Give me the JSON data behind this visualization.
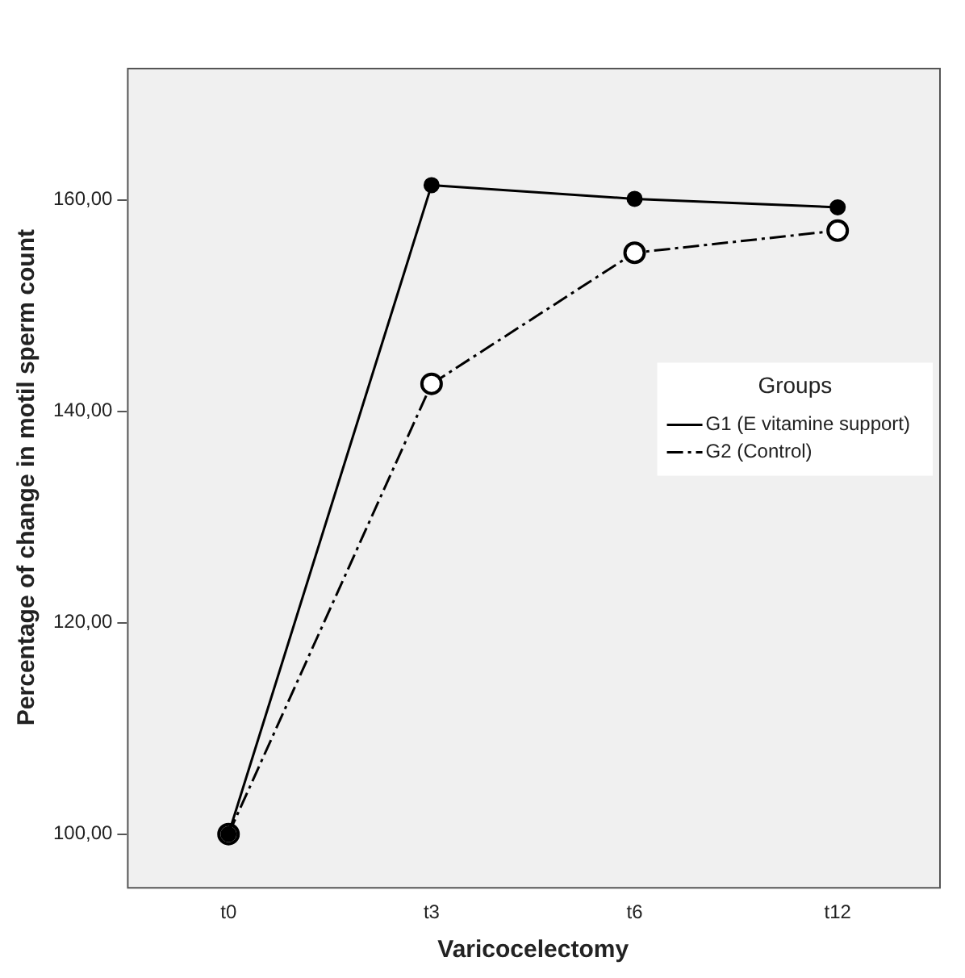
{
  "chart_data": {
    "type": "line",
    "xlabel": "Varicocelectomy",
    "ylabel": "Percentage of change in motil sperm count",
    "categories": [
      "t0",
      "t3",
      "t6",
      "t12"
    ],
    "series": [
      {
        "name": "G1 (E vitamine support)",
        "color": "#000000",
        "values": [
          100,
          161.4,
          160.1,
          159.3
        ],
        "line_style": "solid"
      },
      {
        "name": "G2 (Control)",
        "color": "#000000",
        "values": [
          100,
          142.6,
          155.0,
          157.1
        ],
        "line_style": "dashed"
      }
    ],
    "ylim": [
      95,
      172.5
    ],
    "yticks": [
      {
        "value": 100,
        "label": "100,00"
      },
      {
        "value": 120,
        "label": "120,00"
      },
      {
        "value": 140,
        "label": "140,00"
      },
      {
        "value": 160,
        "label": "160,00"
      }
    ],
    "legend_title": "Groups",
    "legend": "right",
    "marker": "circle",
    "grid": false
  }
}
